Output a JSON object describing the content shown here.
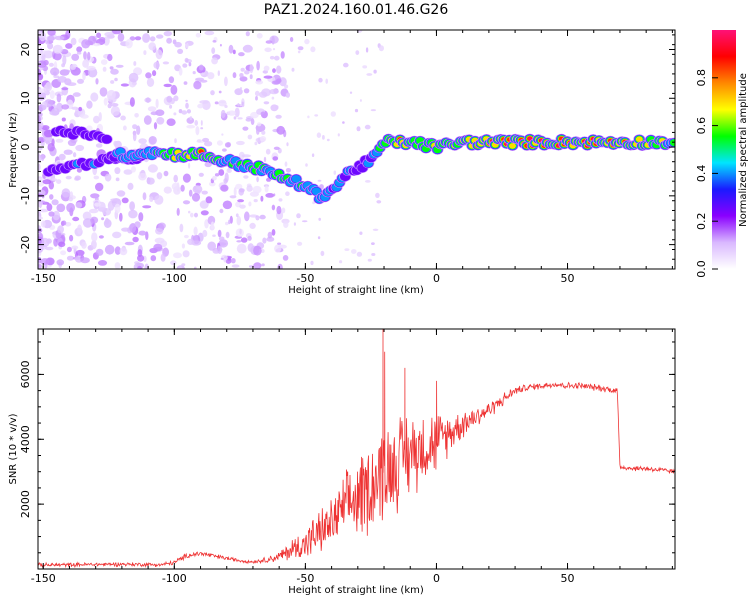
{
  "figure_title": "PAZ1.2024.160.01.46.G26",
  "chart_data": [
    {
      "type": "heatmap",
      "xlabel": "Height of straight line (km)",
      "ylabel": "Frequency (Hz)",
      "xlim": [
        -152,
        91
      ],
      "ylim": [
        -25,
        24
      ],
      "xticks": [
        -150,
        -100,
        -50,
        0,
        50
      ],
      "yticks": [
        -20,
        -10,
        0,
        10,
        20
      ],
      "colorbar": {
        "label": "Normalized spectral amplitude",
        "range": [
          0,
          1
        ],
        "ticks": [
          "0.0",
          "0.2",
          "0.4",
          "0.6",
          "0.8"
        ],
        "colormap": [
          "#ffffff",
          "#d9b8ff",
          "#8a00ff",
          "#1a1aff",
          "#00e5ff",
          "#00ff00",
          "#ffff00",
          "#ff8800",
          "#ff0000",
          "#ff1177"
        ]
      },
      "ridge": {
        "x": [
          -125,
          -110,
          -100,
          -90,
          -80,
          -70,
          -60,
          -50,
          -45,
          -40,
          -35,
          -30,
          -25,
          -20,
          -15,
          -10,
          0,
          10,
          20,
          40,
          60,
          80,
          91
        ],
        "y": [
          -2,
          -1,
          -1.5,
          -1.5,
          -3,
          -4,
          -6,
          -8,
          -10,
          -9,
          -6,
          -4,
          -3,
          1,
          1,
          1,
          0,
          1,
          1,
          1,
          1,
          1,
          1
        ],
        "peak_amplitude": [
          0.35,
          0.5,
          0.7,
          0.8,
          0.5,
          0.6,
          0.55,
          0.5,
          0.5,
          0.4,
          0.4,
          0.35,
          0.4,
          0.55,
          0.8,
          0.7,
          0.65,
          0.8,
          0.95,
          0.97,
          0.95,
          0.7,
          0.6
        ]
      },
      "secondary_branch": {
        "x": [
          -148,
          -140,
          -130,
          -120,
          -112
        ],
        "y": [
          -5,
          -4,
          -3,
          -2.5,
          -2
        ],
        "peak_amplitude": [
          0.3,
          0.35,
          0.35,
          0.3,
          0.3
        ]
      },
      "upper_branch": {
        "x": [
          -145,
          -138,
          -130,
          -125
        ],
        "y": [
          3.5,
          3,
          2.5,
          2
        ],
        "peak_amplitude": [
          0.25,
          0.3,
          0.3,
          0.25
        ]
      }
    },
    {
      "type": "line",
      "xlabel": "Height of straight line (km)",
      "ylabel": "SNR (10 * v/v)",
      "xlim": [
        -152,
        91
      ],
      "ylim": [
        0,
        7400
      ],
      "xticks": [
        -150,
        -100,
        -50,
        0,
        50
      ],
      "yticks": [
        2000,
        4000,
        6000
      ],
      "series": [
        {
          "color": "#ee3333",
          "envelope": {
            "x": [
              -152,
              -120,
              -105,
              -100,
              -95,
              -90,
              -85,
              -80,
              -75,
              -70,
              -65,
              -60,
              -55,
              -50,
              -45,
              -40,
              -35,
              -30,
              -25,
              -20,
              -15,
              -10,
              -5,
              0,
              5,
              10,
              15,
              20,
              25,
              30,
              35,
              40,
              45,
              50,
              55,
              60,
              65,
              69,
              70,
              75,
              80,
              85,
              91
            ],
            "mean": [
              120,
              150,
              130,
              200,
              420,
              480,
              400,
              330,
              260,
              220,
              280,
              380,
              600,
              800,
              1100,
              1400,
              1900,
              2200,
              2600,
              3000,
              3300,
              3600,
              3800,
              3900,
              4200,
              4500,
              4700,
              4900,
              5200,
              5500,
              5600,
              5650,
              5700,
              5650,
              5650,
              5600,
              5550,
              5500,
              3150,
              3100,
              3100,
              3050,
              3000
            ],
            "noise": [
              60,
              60,
              60,
              70,
              80,
              80,
              70,
              60,
              50,
              50,
              90,
              150,
              350,
              500,
              650,
              750,
              950,
              1300,
              1400,
              1500,
              1400,
              1300,
              1100,
              950,
              600,
              450,
              350,
              250,
              200,
              120,
              100,
              100,
              100,
              100,
              100,
              100,
              100,
              100,
              80,
              80,
              80,
              80,
              80
            ]
          },
          "spikes": {
            "x": [
              -20.5,
              -19.8,
              -12,
              0
            ],
            "y": [
              7400,
              6700,
              6200,
              5800
            ]
          }
        }
      ]
    }
  ]
}
